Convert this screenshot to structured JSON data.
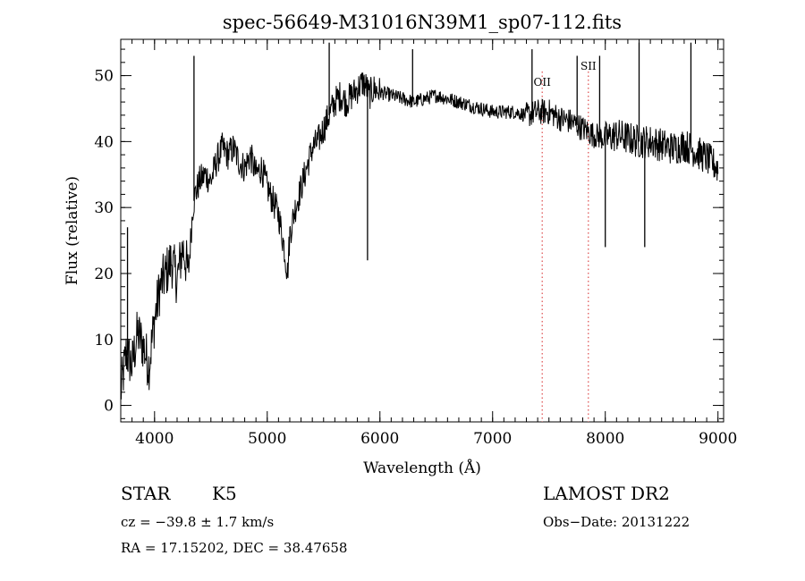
{
  "chart_data": {
    "type": "line",
    "title": "spec-56649-M31016N39M1_sp07-112.fits",
    "xlabel": "Wavelength (Å)",
    "ylabel": "Flux (relative)",
    "xlim": [
      3700,
      9050
    ],
    "ylim": [
      -2.5,
      55.5
    ],
    "x_ticks": [
      4000,
      5000,
      6000,
      7000,
      8000,
      9000
    ],
    "y_ticks": [
      0,
      10,
      20,
      30,
      40,
      50
    ],
    "grid": false,
    "line_color": "#000000",
    "marker_color": "#d62728",
    "series": [
      {
        "x": [
          3700,
          3750,
          3800,
          3850,
          3900,
          3950,
          4000,
          4050,
          4100,
          4150,
          4200,
          4250,
          4300,
          4340,
          4360,
          4400,
          4450,
          4500,
          4550,
          4600,
          4650,
          4700,
          4750,
          4800,
          4850,
          4900,
          4950,
          5000,
          5050,
          5100,
          5150,
          5180,
          5200,
          5250,
          5300,
          5350,
          5400,
          5450,
          5500,
          5550,
          5600,
          5650,
          5700,
          5750,
          5800,
          5850,
          5890,
          5900,
          5950,
          6000,
          6100,
          6200,
          6300,
          6400,
          6500,
          6600,
          6700,
          6800,
          6900,
          7000,
          7100,
          7200,
          7300,
          7400,
          7500,
          7600,
          7700,
          7800,
          7900,
          8000,
          8100,
          8200,
          8300,
          8400,
          8500,
          8600,
          8700,
          8800,
          8900,
          9000
        ],
        "y": [
          2,
          8,
          6,
          11,
          9,
          6,
          13,
          18,
          20,
          22,
          19,
          24,
          20,
          30,
          32,
          34,
          35,
          34,
          37,
          39,
          38,
          39,
          37,
          36,
          38,
          35,
          36,
          33,
          31,
          29,
          24,
          20,
          26,
          30,
          33,
          36,
          39,
          40,
          42,
          44,
          46,
          47,
          46,
          47,
          48,
          49,
          48,
          47,
          48,
          47.5,
          47,
          46.5,
          46,
          46.5,
          47,
          46.5,
          46,
          45.5,
          45,
          44.5,
          44.5,
          44.5,
          44,
          44.5,
          44.5,
          43.5,
          43,
          42,
          41,
          40.5,
          41,
          40.5,
          40,
          40,
          39.5,
          39,
          39.5,
          38.5,
          37.5,
          36
        ]
      }
    ],
    "spikes": [
      {
        "x": 3760,
        "y": 27
      },
      {
        "x": 4350,
        "y": 53
      },
      {
        "x": 5550,
        "y": 55
      },
      {
        "x": 5890,
        "y": 22
      },
      {
        "x": 6290,
        "y": 54
      },
      {
        "x": 7350,
        "y": 54
      },
      {
        "x": 7750,
        "y": 53
      },
      {
        "x": 7950,
        "y": 53
      },
      {
        "x": 8000,
        "y": 24
      },
      {
        "x": 8300,
        "y": 55
      },
      {
        "x": 8350,
        "y": 24
      },
      {
        "x": 8760,
        "y": 55
      }
    ],
    "lines": [
      {
        "name": "OII",
        "x": 7440
      },
      {
        "name": "SII",
        "x": 7850
      }
    ]
  },
  "info": {
    "object_class": "STAR",
    "subclass": "K5",
    "survey": "LAMOST DR2",
    "cz": "cz = −39.8 ± 1.7 km/s",
    "obs_date": "Obs−Date: 20131222",
    "coords": "RA =  17.15202, DEC =  38.47658"
  }
}
